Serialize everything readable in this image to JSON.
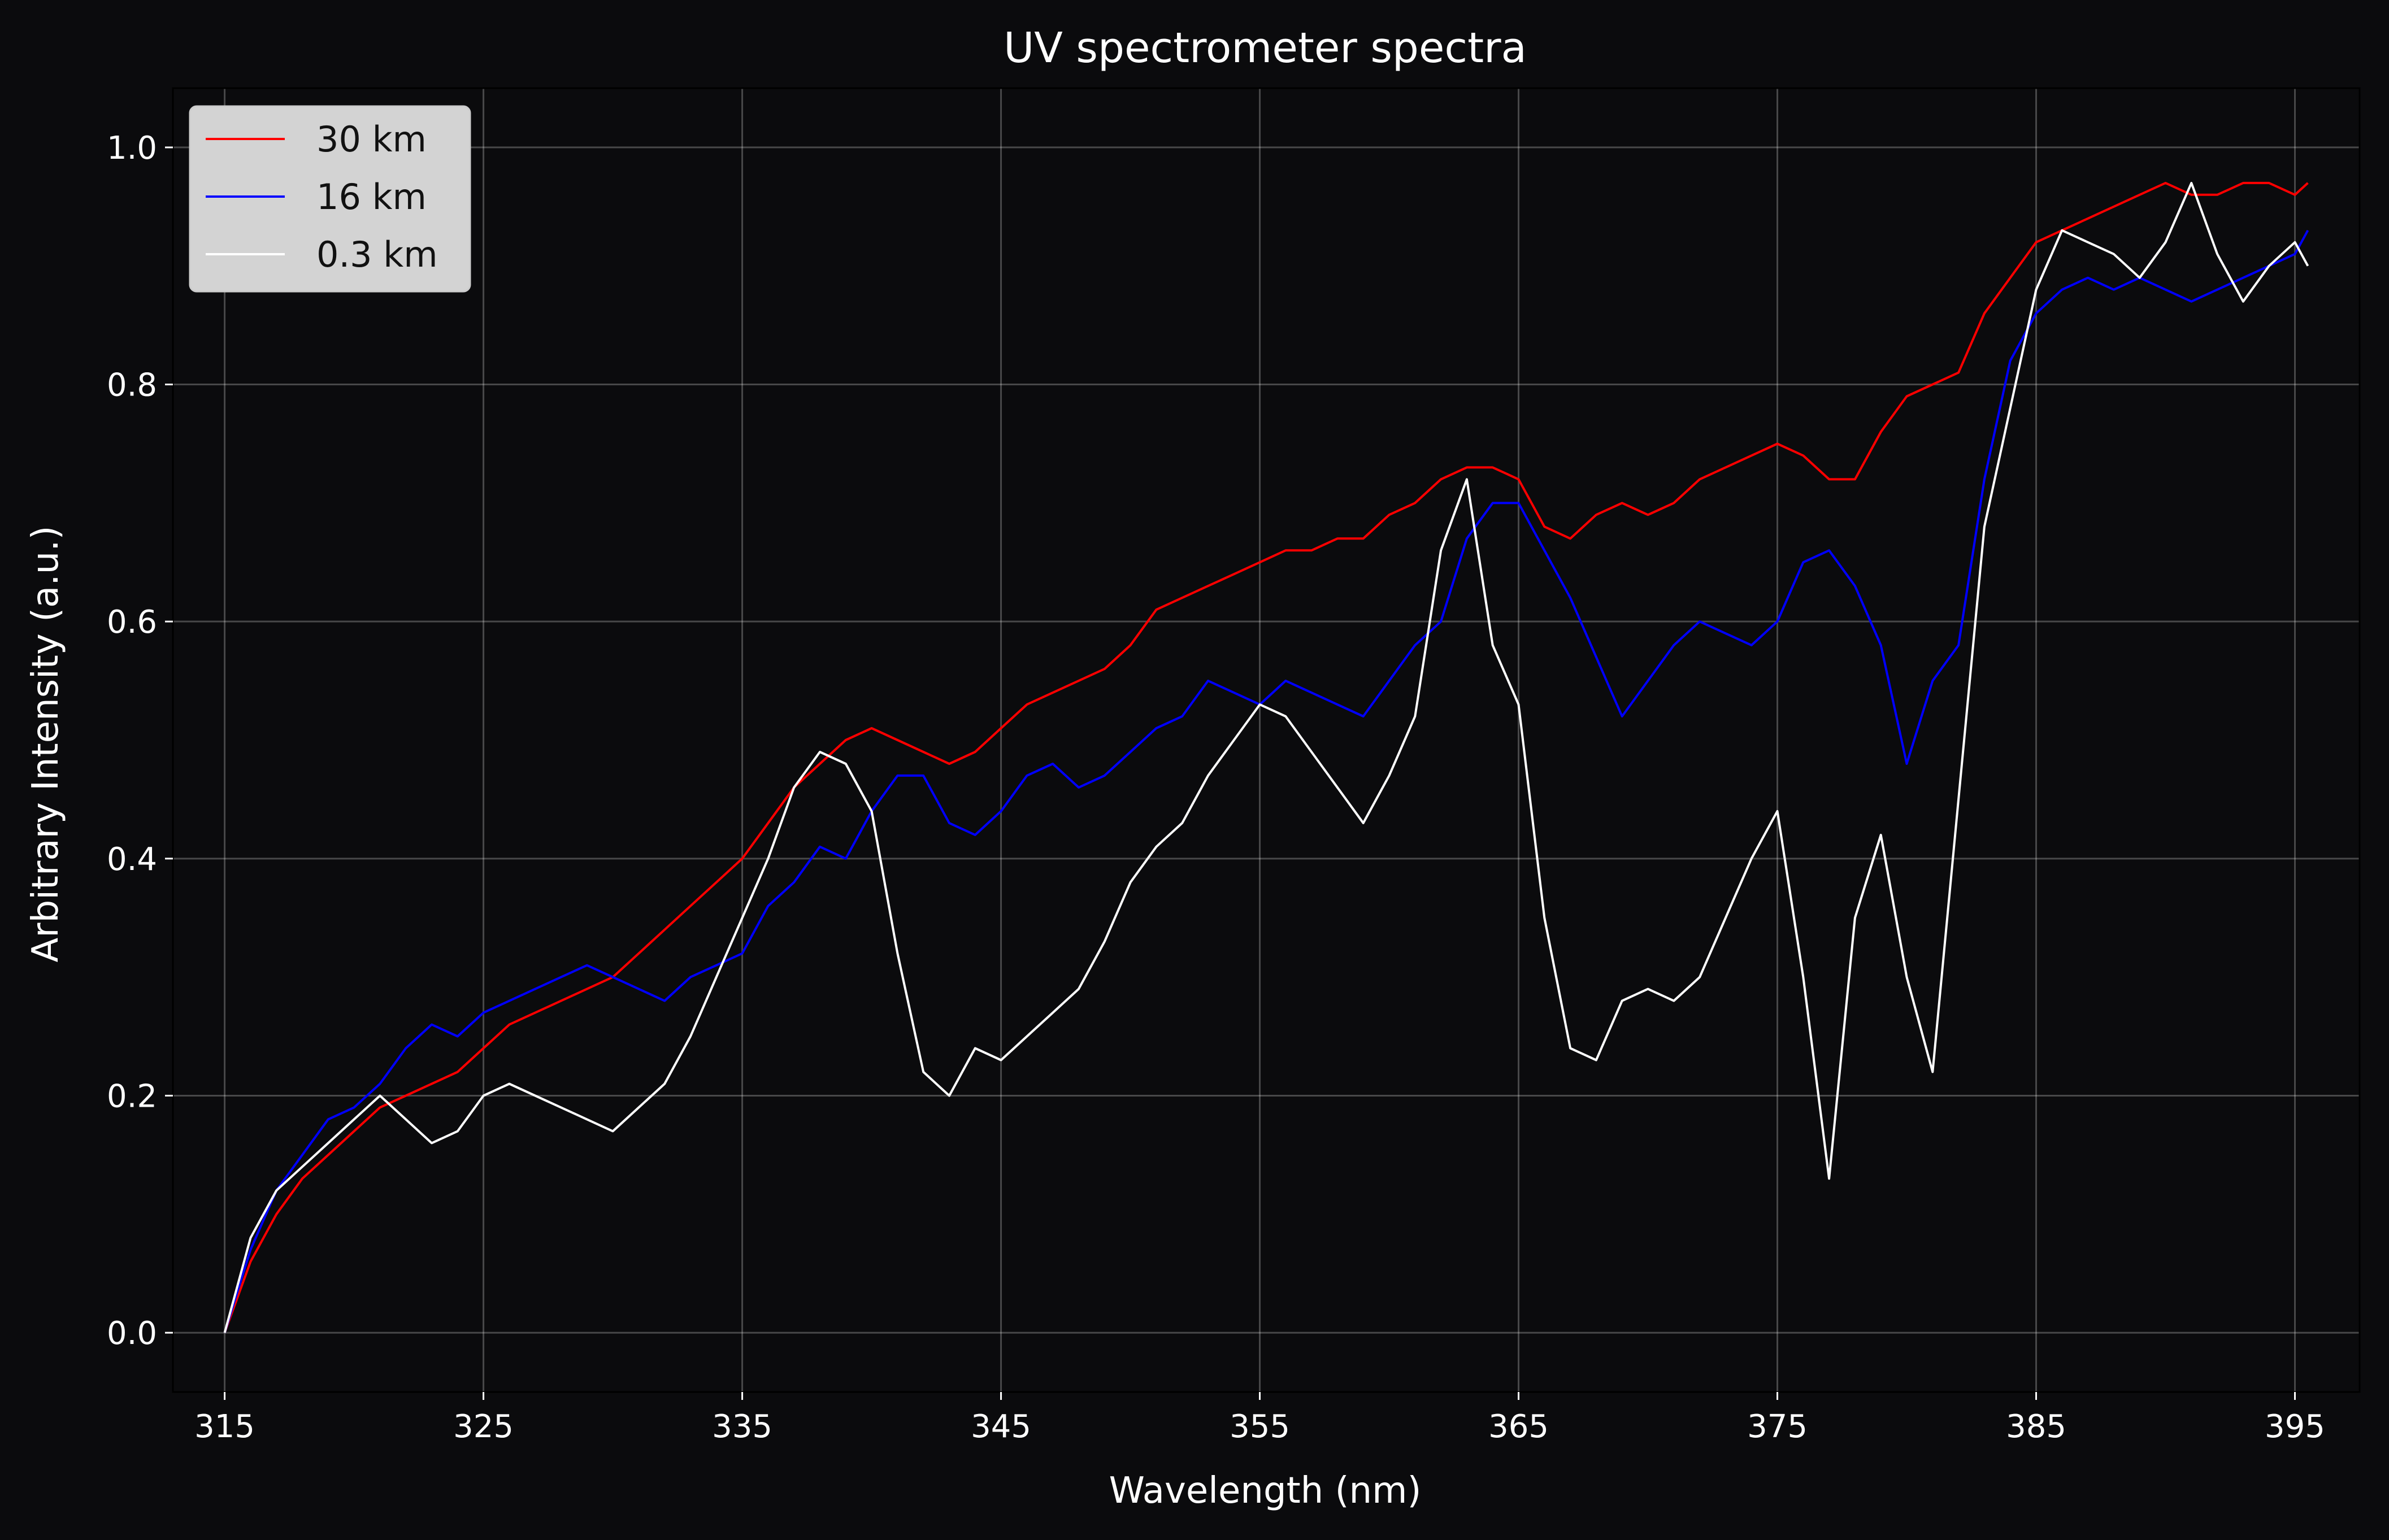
{
  "chart_data": {
    "type": "line",
    "title": "UV spectrometer spectra",
    "xlabel": "Wavelength (nm)",
    "ylabel": "Arbitrary Intensity (a.u.)",
    "xlim": [
      313,
      397.5
    ],
    "ylim": [
      -0.05,
      1.05
    ],
    "xticks": [
      315,
      325,
      335,
      345,
      355,
      365,
      375,
      385,
      395
    ],
    "yticks": [
      0.0,
      0.2,
      0.4,
      0.6,
      0.8,
      1.0
    ],
    "xtick_labels": [
      "315",
      "325",
      "335",
      "345",
      "355",
      "365",
      "375",
      "385",
      "395"
    ],
    "ytick_labels": [
      "0.0",
      "0.2",
      "0.4",
      "0.6",
      "0.8",
      "1.0"
    ],
    "grid": true,
    "legend": "top-left",
    "background": "#0b0b0d",
    "x": [
      315,
      316,
      317,
      318,
      319,
      320,
      321,
      322,
      323,
      324,
      325,
      326,
      327,
      328,
      329,
      330,
      331,
      332,
      333,
      334,
      335,
      336,
      337,
      338,
      339,
      340,
      341,
      342,
      343,
      344,
      345,
      346,
      347,
      348,
      349,
      350,
      351,
      352,
      353,
      354,
      355,
      356,
      357,
      358,
      359,
      360,
      361,
      362,
      363,
      364,
      365,
      366,
      367,
      368,
      369,
      370,
      371,
      372,
      373,
      374,
      375,
      376,
      377,
      378,
      379,
      380,
      381,
      382,
      383,
      384,
      385,
      386,
      387,
      388,
      389,
      390,
      391,
      392,
      393,
      394,
      395,
      395.5
    ],
    "series": [
      {
        "name": "30 km",
        "color": "#ff0000",
        "values": [
          0.0,
          0.06,
          0.1,
          0.13,
          0.15,
          0.17,
          0.19,
          0.2,
          0.21,
          0.22,
          0.24,
          0.26,
          0.27,
          0.28,
          0.29,
          0.3,
          0.32,
          0.34,
          0.36,
          0.38,
          0.4,
          0.43,
          0.46,
          0.48,
          0.5,
          0.51,
          0.5,
          0.49,
          0.48,
          0.49,
          0.51,
          0.53,
          0.54,
          0.55,
          0.56,
          0.58,
          0.61,
          0.62,
          0.63,
          0.64,
          0.65,
          0.66,
          0.66,
          0.67,
          0.67,
          0.69,
          0.7,
          0.72,
          0.73,
          0.73,
          0.72,
          0.68,
          0.67,
          0.69,
          0.7,
          0.69,
          0.7,
          0.72,
          0.73,
          0.74,
          0.75,
          0.74,
          0.72,
          0.72,
          0.76,
          0.79,
          0.8,
          0.81,
          0.86,
          0.89,
          0.92,
          0.93,
          0.94,
          0.95,
          0.96,
          0.97,
          0.96,
          0.96,
          0.97,
          0.97,
          0.96,
          0.97
        ]
      },
      {
        "name": "16 km",
        "color": "#0000ff",
        "values": [
          0.0,
          0.07,
          0.12,
          0.15,
          0.18,
          0.19,
          0.21,
          0.24,
          0.26,
          0.25,
          0.27,
          0.28,
          0.29,
          0.3,
          0.31,
          0.3,
          0.29,
          0.28,
          0.3,
          0.31,
          0.32,
          0.36,
          0.38,
          0.41,
          0.4,
          0.44,
          0.47,
          0.47,
          0.43,
          0.42,
          0.44,
          0.47,
          0.48,
          0.46,
          0.47,
          0.49,
          0.51,
          0.52,
          0.55,
          0.54,
          0.53,
          0.55,
          0.54,
          0.53,
          0.52,
          0.55,
          0.58,
          0.6,
          0.67,
          0.7,
          0.7,
          0.66,
          0.62,
          0.57,
          0.52,
          0.55,
          0.58,
          0.6,
          0.59,
          0.58,
          0.6,
          0.65,
          0.66,
          0.63,
          0.58,
          0.48,
          0.55,
          0.58,
          0.72,
          0.82,
          0.86,
          0.88,
          0.89,
          0.88,
          0.89,
          0.88,
          0.87,
          0.88,
          0.89,
          0.9,
          0.91,
          0.93
        ]
      },
      {
        "name": "0.3 km",
        "color": "#ffffff",
        "values": [
          0.0,
          0.08,
          0.12,
          0.14,
          0.16,
          0.18,
          0.2,
          0.18,
          0.16,
          0.17,
          0.2,
          0.21,
          0.2,
          0.19,
          0.18,
          0.17,
          0.19,
          0.21,
          0.25,
          0.3,
          0.35,
          0.4,
          0.46,
          0.49,
          0.48,
          0.44,
          0.32,
          0.22,
          0.2,
          0.24,
          0.23,
          0.25,
          0.27,
          0.29,
          0.33,
          0.38,
          0.41,
          0.43,
          0.47,
          0.5,
          0.53,
          0.52,
          0.49,
          0.46,
          0.43,
          0.47,
          0.52,
          0.66,
          0.72,
          0.58,
          0.53,
          0.35,
          0.24,
          0.23,
          0.28,
          0.29,
          0.28,
          0.3,
          0.35,
          0.4,
          0.44,
          0.3,
          0.13,
          0.35,
          0.42,
          0.3,
          0.22,
          0.45,
          0.68,
          0.78,
          0.88,
          0.93,
          0.92,
          0.91,
          0.89,
          0.92,
          0.97,
          0.91,
          0.87,
          0.9,
          0.92,
          0.9
        ]
      }
    ]
  }
}
